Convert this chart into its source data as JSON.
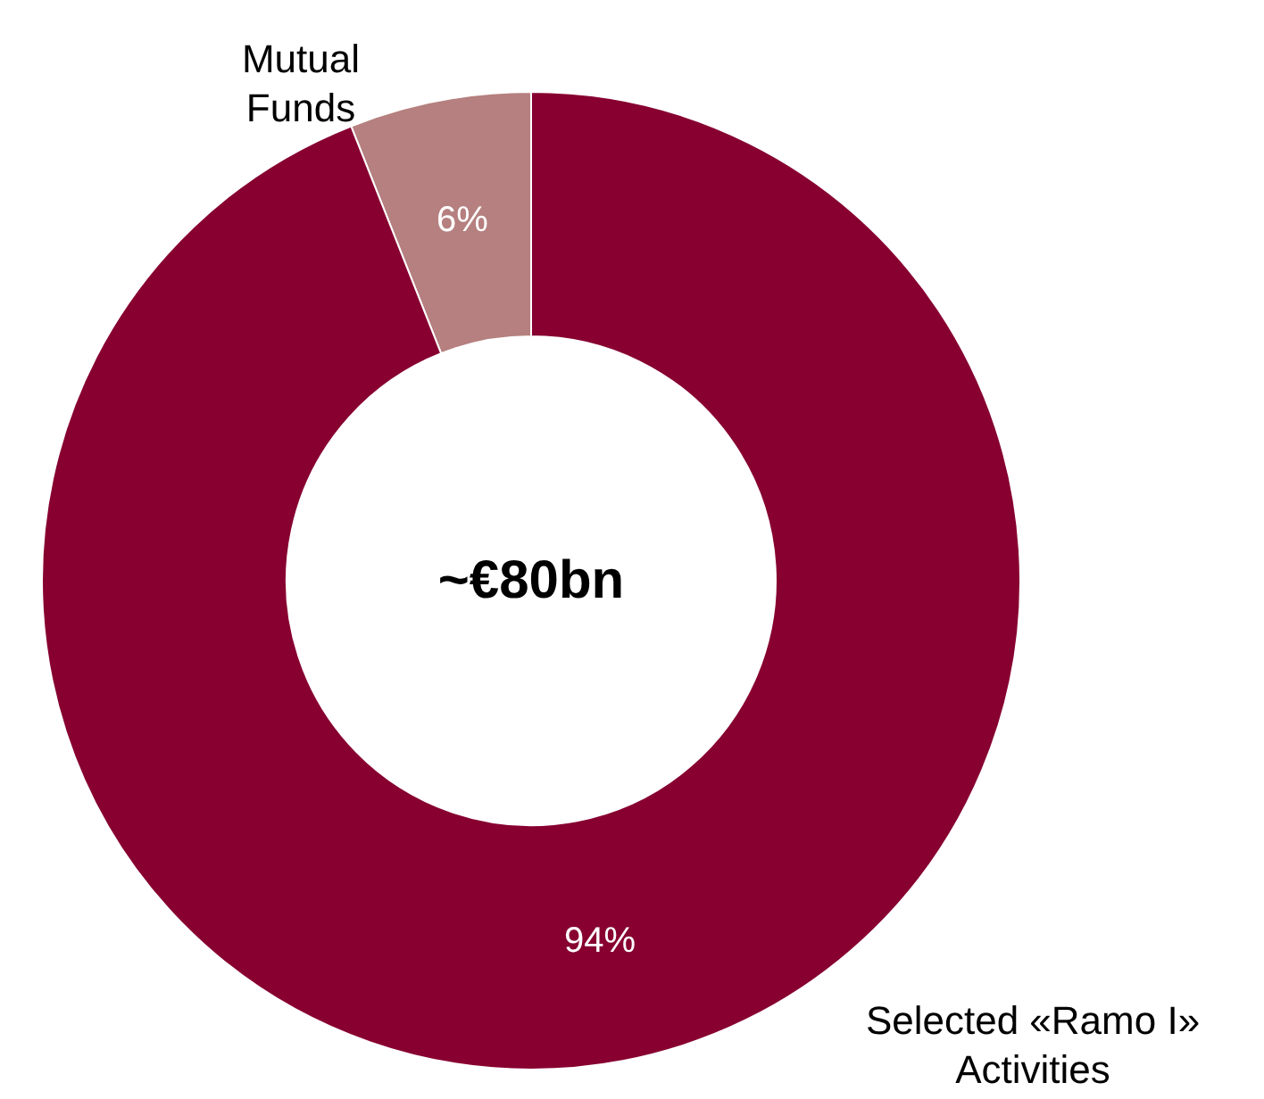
{
  "chart_data": {
    "type": "donut",
    "categories": [
      "Mutual\nFunds",
      "Selected «Ramo I»\nActivities"
    ],
    "values": [
      6,
      94
    ],
    "colors": [
      "#b5807f",
      "#870030"
    ],
    "value_labels": [
      "6%",
      "94%"
    ],
    "annotations": [
      "~€80bn"
    ]
  }
}
